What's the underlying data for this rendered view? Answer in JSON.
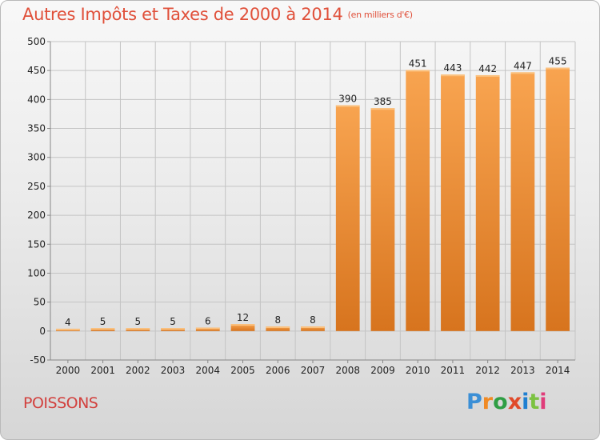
{
  "chart_data": {
    "type": "bar",
    "title": "Autres Impôts et Taxes de 2000 à 2014",
    "unit_note": "(en milliers d'€)",
    "categories": [
      "2000",
      "2001",
      "2002",
      "2003",
      "2004",
      "2005",
      "2006",
      "2007",
      "2008",
      "2009",
      "2010",
      "2011",
      "2012",
      "2013",
      "2014"
    ],
    "values": [
      4,
      5,
      5,
      5,
      6,
      12,
      8,
      8,
      390,
      385,
      451,
      443,
      442,
      447,
      455
    ],
    "data_labels": [
      "4",
      "5",
      "5",
      "5",
      "6",
      "12",
      "8",
      "8",
      "390",
      "385",
      "451",
      "443",
      "442",
      "447",
      "455"
    ],
    "ylim": [
      -50,
      500
    ],
    "yticks": [
      -50,
      0,
      50,
      100,
      150,
      200,
      250,
      300,
      350,
      400,
      450,
      500
    ],
    "grid": true,
    "bar_color": "#f0933c"
  },
  "footer": {
    "commune": "POISSONS",
    "logo_text": "Proxiti",
    "logo_colors": [
      "#3b8fd6",
      "#f08a24",
      "#2f9e44",
      "#e04a2a",
      "#1f7fd1",
      "#7cc242",
      "#e03c7a"
    ]
  }
}
